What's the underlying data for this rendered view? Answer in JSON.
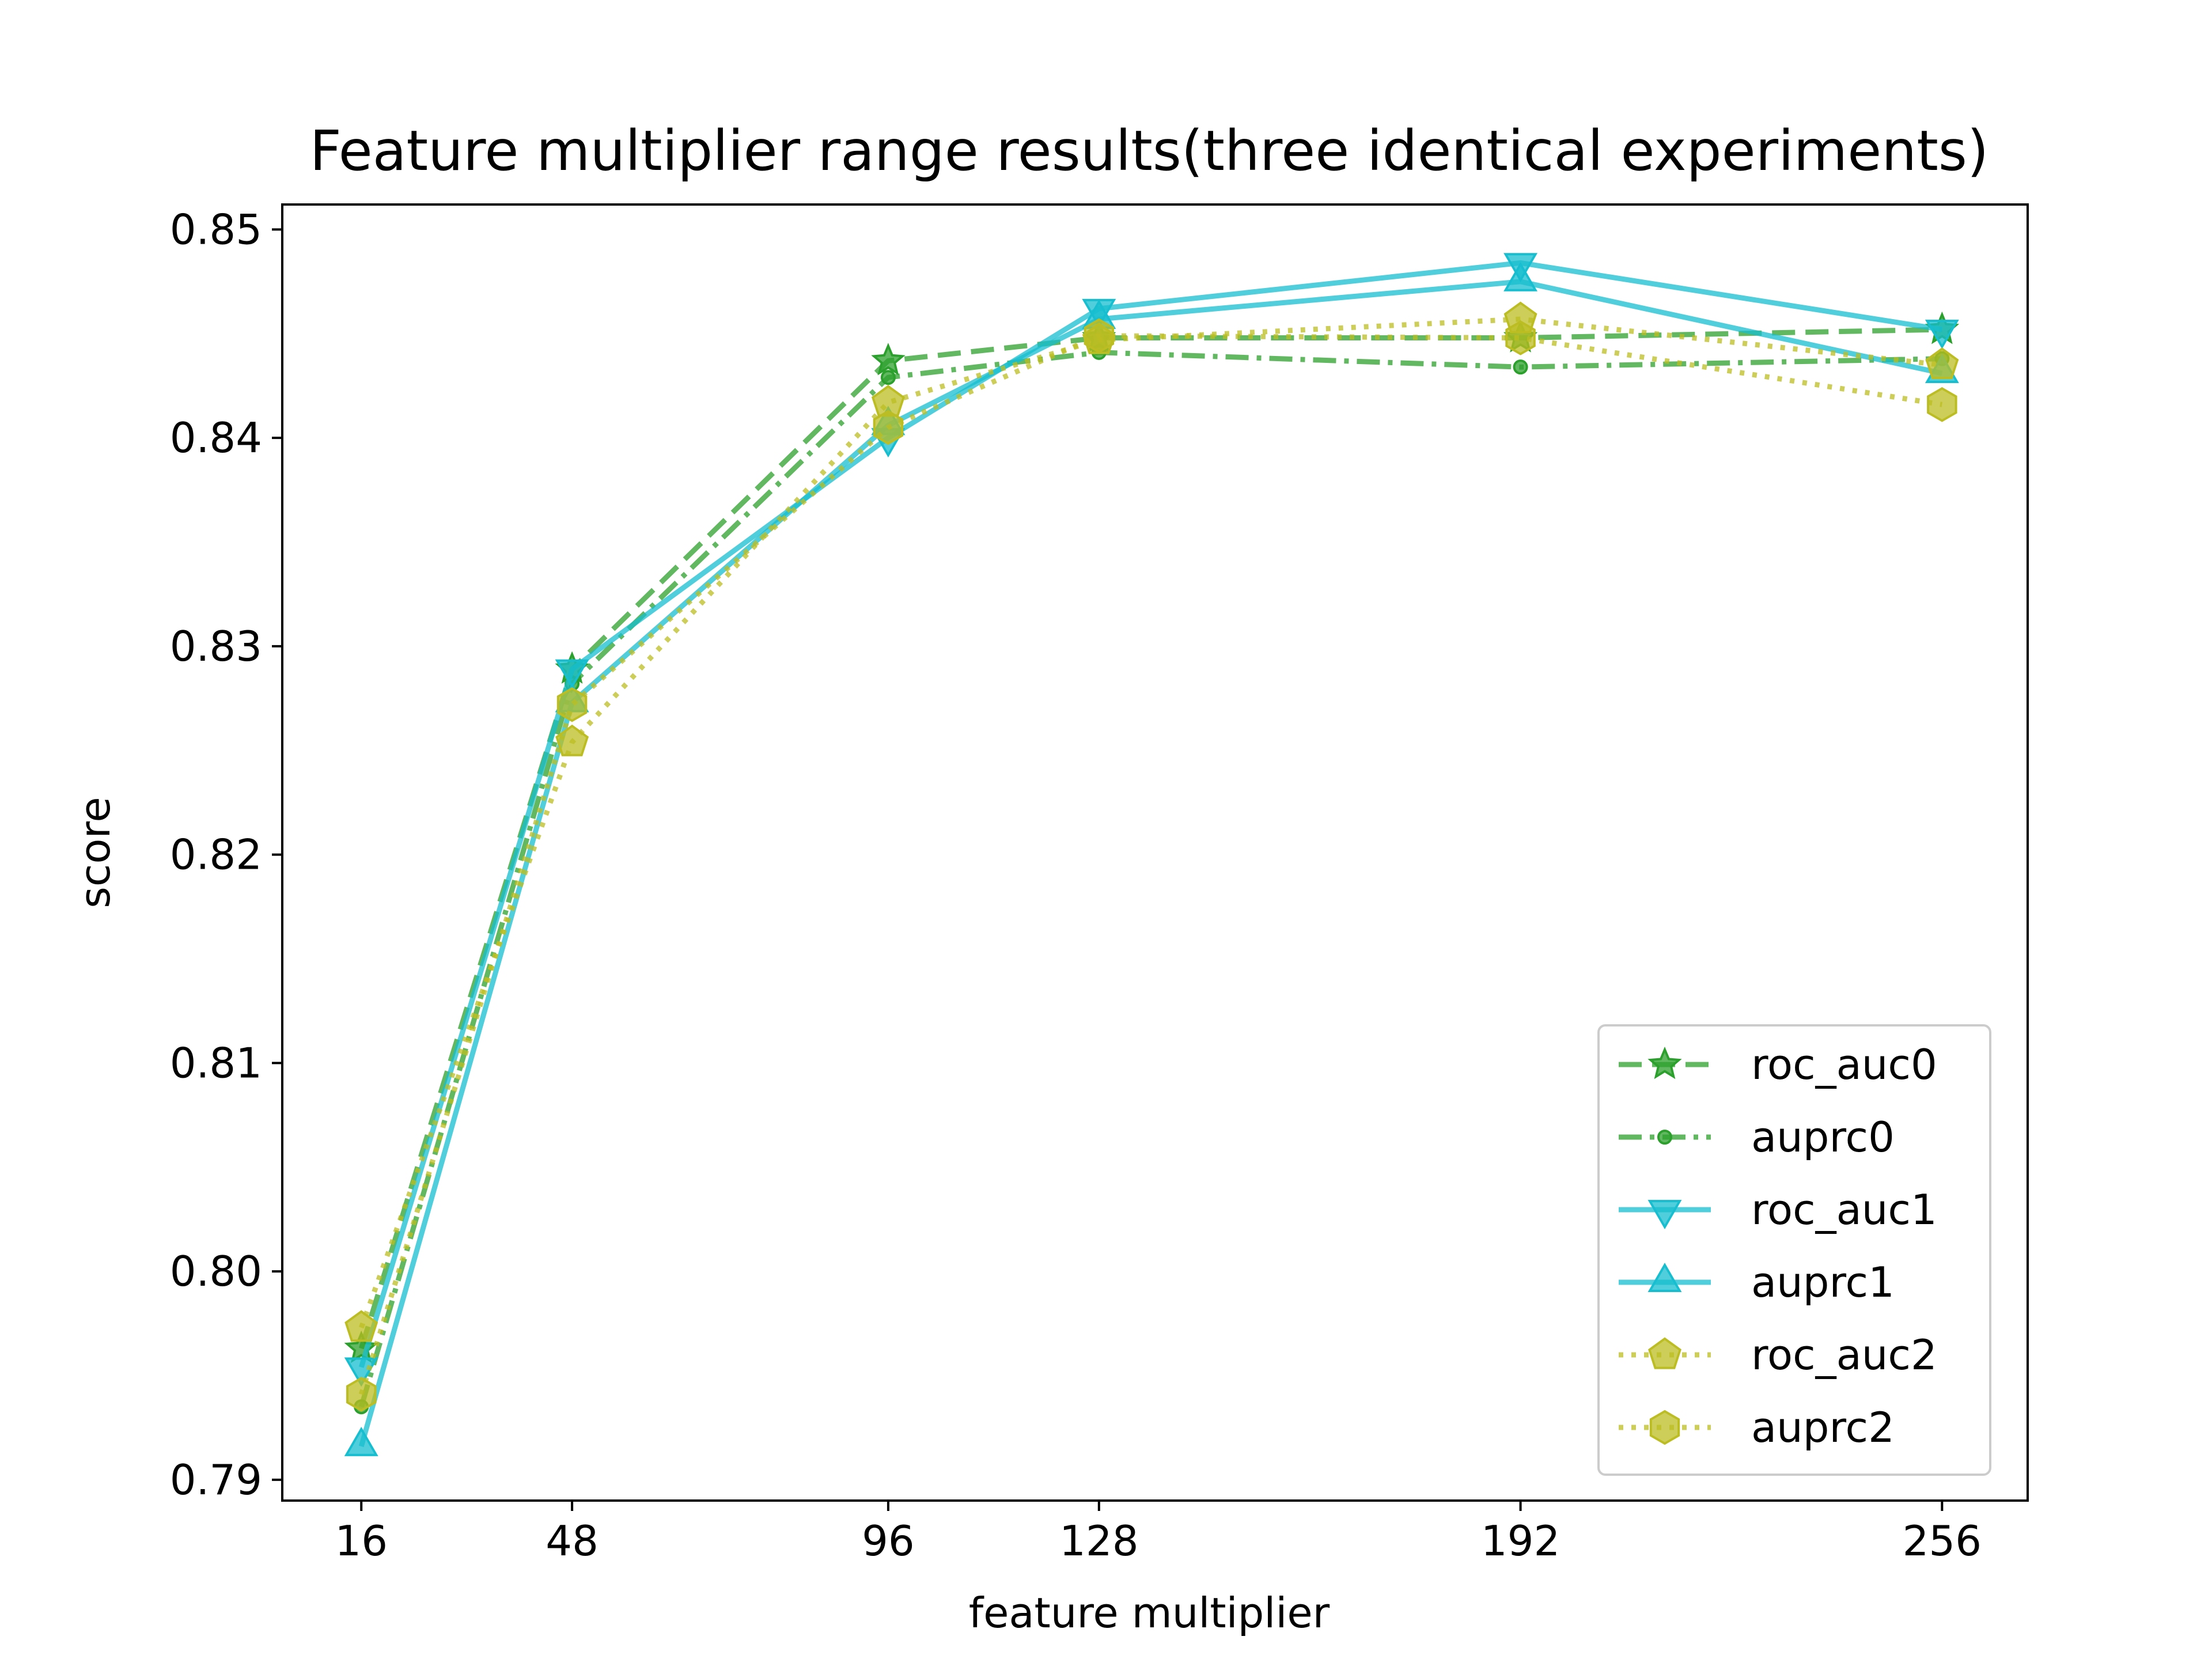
{
  "chart_data": {
    "type": "line",
    "title": "Feature multiplier range results(three identical experiments)",
    "xlabel": "feature multiplier",
    "ylabel": "score",
    "x": [
      16,
      48,
      96,
      128,
      192,
      256
    ],
    "xticks": [
      "16",
      "48",
      "96",
      "128",
      "192",
      "256"
    ],
    "yticks": [
      "0.79",
      "0.80",
      "0.81",
      "0.82",
      "0.83",
      "0.84",
      "0.85"
    ],
    "xlim": [
      4,
      269
    ],
    "ylim": [
      0.789,
      0.8512
    ],
    "grid": false,
    "legend_position": "lower-right",
    "series": [
      {
        "name": "roc_auc0",
        "values": [
          0.7963,
          0.8289,
          0.8437,
          0.8448,
          0.8448,
          0.8452
        ],
        "color": "#2ca02c",
        "dash": "dash",
        "marker": "star"
      },
      {
        "name": "auprc0",
        "values": [
          0.7935,
          0.8282,
          0.8429,
          0.8441,
          0.8434,
          0.8438
        ],
        "color": "#2ca02c",
        "dash": "dashdot",
        "marker": "dot"
      },
      {
        "name": "roc_auc1",
        "values": [
          0.7954,
          0.8289,
          0.84,
          0.8462,
          0.8484,
          0.8452
        ],
        "color": "#17becf",
        "dash": "solid",
        "marker": "triangle-down"
      },
      {
        "name": "auprc1",
        "values": [
          0.7916,
          0.8273,
          0.8406,
          0.8457,
          0.8475,
          0.8431
        ],
        "color": "#17becf",
        "dash": "solid",
        "marker": "triangle-up"
      },
      {
        "name": "roc_auc2",
        "values": [
          0.7973,
          0.8254,
          0.8417,
          0.8447,
          0.8457,
          0.8435
        ],
        "color": "#bcbd22",
        "dash": "dot",
        "marker": "pentagon"
      },
      {
        "name": "auprc2",
        "values": [
          0.7941,
          0.8272,
          0.8405,
          0.8449,
          0.8448,
          0.8416
        ],
        "color": "#bcbd22",
        "dash": "dot",
        "marker": "hexagon"
      }
    ]
  }
}
